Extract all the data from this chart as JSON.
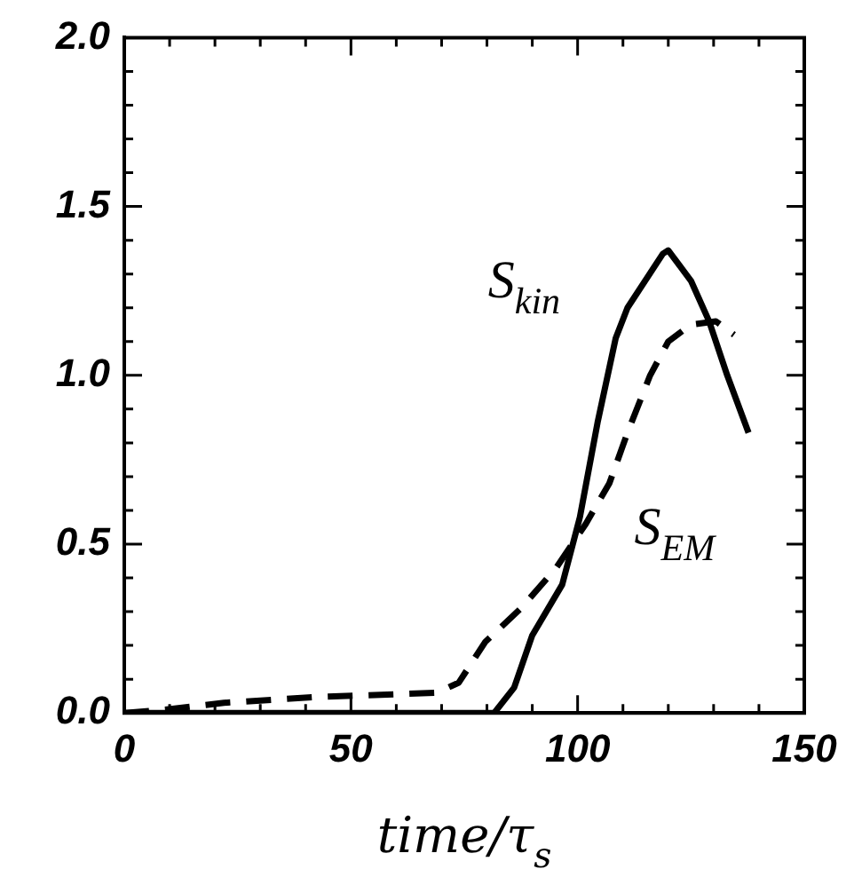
{
  "chart_data": {
    "type": "line",
    "xlabel": "time/τ$_{s}$",
    "xlim": [
      0,
      150
    ],
    "xticks": [
      0,
      50,
      100,
      150
    ],
    "ylim": [
      0,
      2
    ],
    "yticks": [
      {
        "value": 0,
        "label": "0.0"
      },
      {
        "value": 0.5,
        "label": "0.5"
      },
      {
        "value": 1,
        "label": "1.0"
      },
      {
        "value": 1.5,
        "label": "1.5"
      },
      {
        "value": 2,
        "label": "2.0"
      }
    ],
    "grid": false,
    "legend": false,
    "marker": "none",
    "series": [
      {
        "color": "#000000",
        "line_style": "solid",
        "x": [
          0,
          81.6,
          86,
          90,
          96.6,
          100.5,
          104.4,
          108.4,
          111,
          118.8,
          120,
          125,
          129,
          133,
          137.7
        ],
        "values": [
          0,
          0,
          0.075,
          0.23,
          0.38,
          0.58,
          0.86,
          1.11,
          1.2,
          1.36,
          1.37,
          1.28,
          1.16,
          1.0,
          0.83
        ]
      },
      {
        "color": "#000000",
        "line_style": "dashed",
        "x": [
          0,
          9,
          22,
          42,
          69,
          73.8,
          79.6,
          87.5,
          95.3,
          101.8,
          107,
          111,
          116,
          120,
          125,
          130.5,
          134.5
        ],
        "values": [
          0,
          0.01,
          0.03,
          0.047,
          0.06,
          0.09,
          0.21,
          0.31,
          0.43,
          0.56,
          0.68,
          0.83,
          1.0,
          1.1,
          1.15,
          1.16,
          1.12
        ]
      }
    ],
    "annotations": [
      "S$_{kin}$",
      "S$_{EM}$"
    ]
  }
}
